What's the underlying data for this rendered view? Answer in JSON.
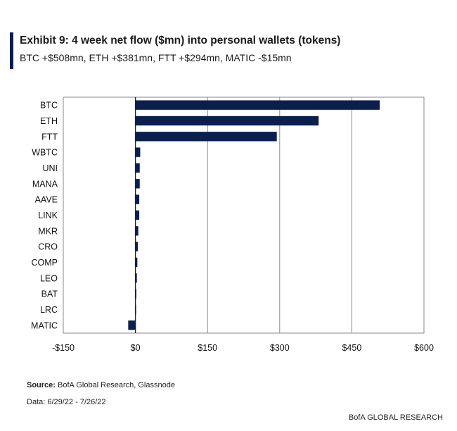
{
  "header": {
    "title": "Exhibit 9: 4 week net flow ($mn) into personal wallets (tokens)",
    "subtitle": "BTC +$508mn, ETH +$381mn, FTT +$294mn, MATIC -$15mn"
  },
  "chart_data": {
    "type": "bar",
    "orientation": "horizontal",
    "categories": [
      "BTC",
      "ETH",
      "FTT",
      "WBTC",
      "UNI",
      "MANA",
      "AAVE",
      "LINK",
      "MKR",
      "CRO",
      "COMP",
      "LEO",
      "BAT",
      "LRC",
      "MATIC"
    ],
    "values": [
      508,
      381,
      294,
      10,
      9,
      9,
      8,
      8,
      6,
      5,
      4,
      3,
      2,
      1,
      -15
    ],
    "xlim": [
      -150,
      600
    ],
    "xticks": [
      -150,
      0,
      150,
      300,
      450,
      600
    ],
    "xtick_labels": [
      "-$150",
      "$0",
      "$150",
      "$300",
      "$450",
      "$600"
    ],
    "grid": true,
    "bar_color": "#0b1f4f"
  },
  "footer": {
    "source_label": "Source:",
    "source_text": "BofA Global Research, Glassnode",
    "dates": "Data: 6/29/22 - 7/26/22",
    "brand": "BofA GLOBAL RESEARCH"
  }
}
